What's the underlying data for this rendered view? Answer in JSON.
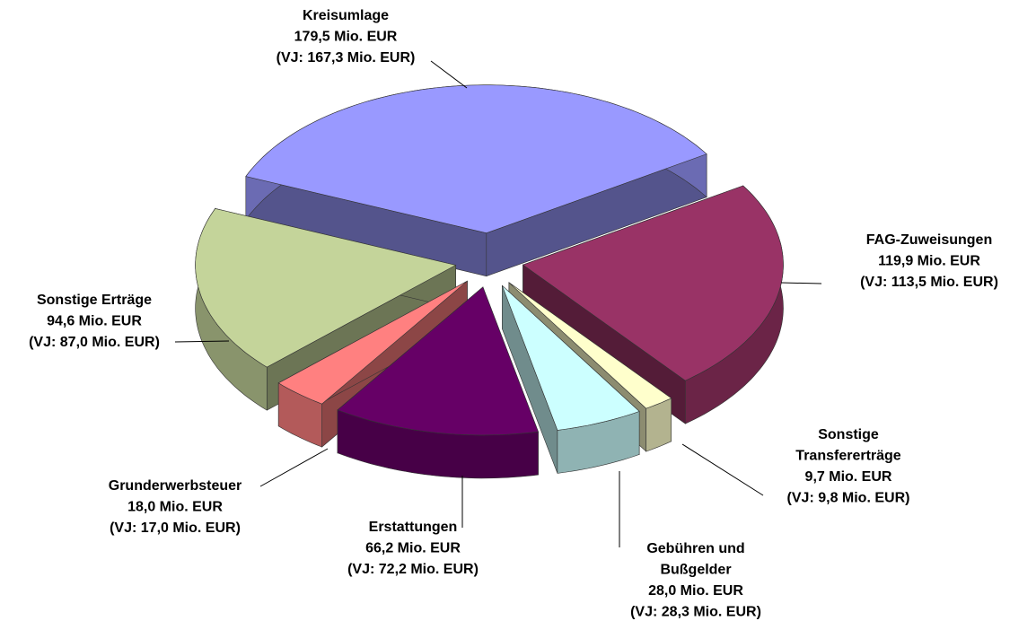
{
  "chart_data": {
    "type": "pie",
    "categories": [
      [
        "Kreisumlage"
      ],
      [
        "FAG-Zuweisungen"
      ],
      [
        "Sonstige",
        "Transfererträge"
      ],
      [
        "Gebühren und",
        "Bußgelder"
      ],
      [
        "Erstattungen"
      ],
      [
        "Grunderwerbsteuer"
      ],
      [
        "Sonstige Erträge"
      ]
    ],
    "values": [
      179.5,
      119.9,
      9.7,
      28.0,
      66.2,
      18.0,
      94.6
    ],
    "value_labels": [
      "179,5 Mio. EUR",
      "119,9 Mio. EUR",
      "9,7 Mio. EUR",
      "28,0 Mio. EUR",
      "66,2 Mio. EUR",
      "18,0 Mio. EUR",
      "94,6 Mio. EUR"
    ],
    "prev_values": [
      167.3,
      113.5,
      9.8,
      28.3,
      72.2,
      17.0,
      87.0
    ],
    "prev_labels": [
      "(VJ: 167,3 Mio. EUR)",
      "(VJ: 113,5 Mio. EUR)",
      "(VJ: 9,8 Mio. EUR)",
      "(VJ: 28,3 Mio. EUR)",
      "(VJ: 72,2 Mio. EUR)",
      "(VJ: 17,0 Mio. EUR)",
      "(VJ: 87,0 Mio. EUR)"
    ],
    "colors": [
      "#9999ff",
      "#993366",
      "#ffffcc",
      "#ccffff",
      "#660066",
      "#ff8080",
      "#c4d49a"
    ]
  }
}
